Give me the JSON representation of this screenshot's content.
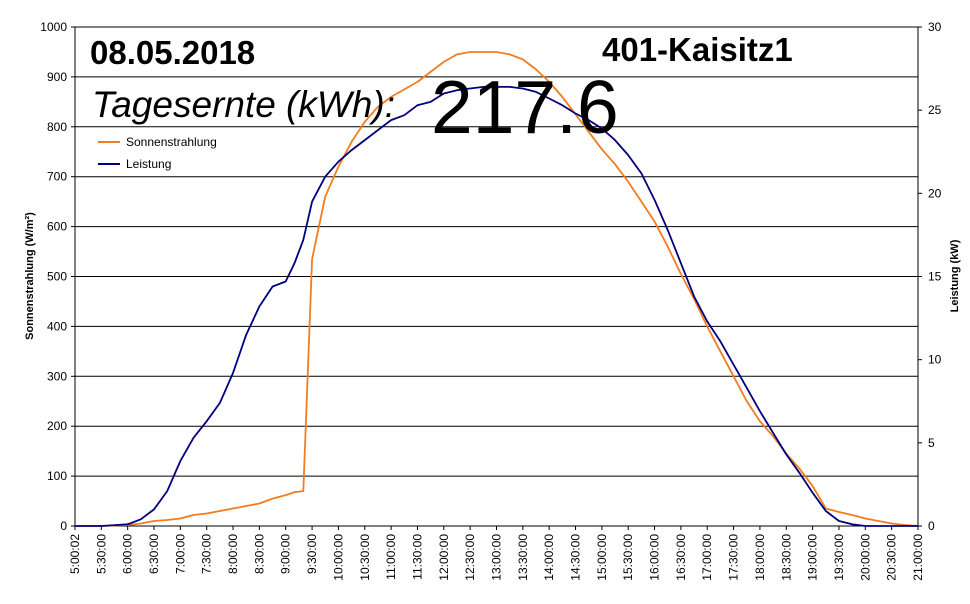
{
  "header": {
    "date": "08.05.2018",
    "plant": "401-Kaisitz1",
    "yield_label": "Tagesernte (kWh):",
    "yield_value": "217.6"
  },
  "chart_data": {
    "type": "line",
    "title": "",
    "ylabel": "Sonnenstrahlung (W/m²)",
    "y2label": "Leistung (kW)",
    "ylim": [
      0,
      1000
    ],
    "y2lim": [
      0,
      30
    ],
    "yticks": [
      0,
      100,
      200,
      300,
      400,
      500,
      600,
      700,
      800,
      900,
      1000
    ],
    "y2ticks": [
      0,
      5,
      10,
      15,
      20,
      25,
      30
    ],
    "xlim": [
      "5:00:02",
      "21:00:00"
    ],
    "xticks": [
      "5:00:02",
      "5:30:00",
      "6:00:00",
      "6:30:00",
      "7:00:00",
      "7:30:00",
      "8:00:00",
      "8:30:00",
      "9:00:00",
      "9:30:00",
      "10:00:00",
      "10:30:00",
      "11:00:00",
      "11:30:00",
      "12:00:00",
      "12:30:00",
      "13:00:00",
      "13:30:00",
      "14:00:00",
      "14:30:00",
      "15:00:00",
      "15:30:00",
      "16:00:00",
      "16:30:00",
      "17:00:00",
      "17:30:00",
      "18:00:00",
      "18:30:00",
      "19:00:00",
      "19:30:00",
      "20:00:00",
      "20:30:00",
      "21:00:00"
    ],
    "grid": true,
    "legend": "top-left",
    "series": [
      {
        "name": "Sonnenstrahlung",
        "axis": "left",
        "color": "#f37c1e",
        "x": [
          "5:00",
          "5:30",
          "6:00",
          "6:15",
          "6:30",
          "6:45",
          "7:00",
          "7:15",
          "7:30",
          "7:45",
          "8:00",
          "8:15",
          "8:30",
          "8:45",
          "9:00",
          "9:10",
          "9:20",
          "9:30",
          "9:45",
          "10:00",
          "10:15",
          "10:30",
          "10:45",
          "11:00",
          "11:15",
          "11:30",
          "11:45",
          "12:00",
          "12:15",
          "12:30",
          "12:45",
          "13:00",
          "13:15",
          "13:30",
          "13:45",
          "14:00",
          "14:15",
          "14:30",
          "14:45",
          "15:00",
          "15:15",
          "15:30",
          "15:45",
          "16:00",
          "16:15",
          "16:30",
          "16:45",
          "17:00",
          "17:15",
          "17:30",
          "17:45",
          "18:00",
          "18:15",
          "18:30",
          "18:45",
          "19:00",
          "19:15",
          "19:30",
          "19:45",
          "20:00",
          "20:15",
          "20:30",
          "20:45",
          "21:00"
        ],
        "values": [
          0,
          0,
          2,
          5,
          10,
          12,
          15,
          22,
          25,
          30,
          35,
          40,
          45,
          55,
          62,
          68,
          70,
          535,
          660,
          720,
          770,
          810,
          840,
          860,
          875,
          890,
          910,
          930,
          945,
          950,
          950,
          950,
          945,
          935,
          915,
          890,
          860,
          825,
          790,
          755,
          725,
          690,
          650,
          610,
          560,
          505,
          455,
          400,
          350,
          300,
          250,
          210,
          180,
          145,
          115,
          80,
          35,
          28,
          22,
          15,
          10,
          5,
          2,
          0
        ]
      },
      {
        "name": "Leistung",
        "axis": "right",
        "color": "#00007f",
        "x": [
          "5:00",
          "5:30",
          "6:00",
          "6:15",
          "6:30",
          "6:45",
          "7:00",
          "7:15",
          "7:30",
          "7:45",
          "8:00",
          "8:15",
          "8:30",
          "8:45",
          "9:00",
          "9:10",
          "9:20",
          "9:30",
          "9:45",
          "10:00",
          "10:15",
          "10:30",
          "10:45",
          "11:00",
          "11:15",
          "11:30",
          "11:45",
          "12:00",
          "12:15",
          "12:30",
          "12:45",
          "13:00",
          "13:15",
          "13:30",
          "13:45",
          "14:00",
          "14:15",
          "14:30",
          "14:45",
          "15:00",
          "15:15",
          "15:30",
          "15:45",
          "16:00",
          "16:15",
          "16:30",
          "16:45",
          "17:00",
          "17:15",
          "17:30",
          "17:45",
          "18:00",
          "18:15",
          "18:30",
          "18:45",
          "19:00",
          "19:15",
          "19:30",
          "19:45",
          "20:00",
          "20:15",
          "20:30",
          "20:45",
          "21:00"
        ],
        "values": [
          0,
          0,
          0.1,
          0.4,
          1.0,
          2.1,
          3.9,
          5.3,
          6.3,
          7.4,
          9.2,
          11.5,
          13.2,
          14.4,
          14.7,
          15.8,
          17.2,
          19.5,
          21.0,
          21.9,
          22.6,
          23.2,
          23.8,
          24.4,
          24.7,
          25.3,
          25.5,
          26.0,
          26.2,
          26.3,
          26.4,
          26.4,
          26.4,
          26.3,
          26.1,
          25.7,
          25.3,
          24.8,
          24.4,
          23.9,
          23.2,
          22.3,
          21.2,
          19.6,
          17.8,
          15.8,
          13.8,
          12.3,
          11.1,
          9.7,
          8.3,
          6.9,
          5.6,
          4.3,
          3.2,
          2.0,
          0.9,
          0.3,
          0.1,
          0,
          0,
          0,
          0,
          0
        ]
      }
    ]
  }
}
